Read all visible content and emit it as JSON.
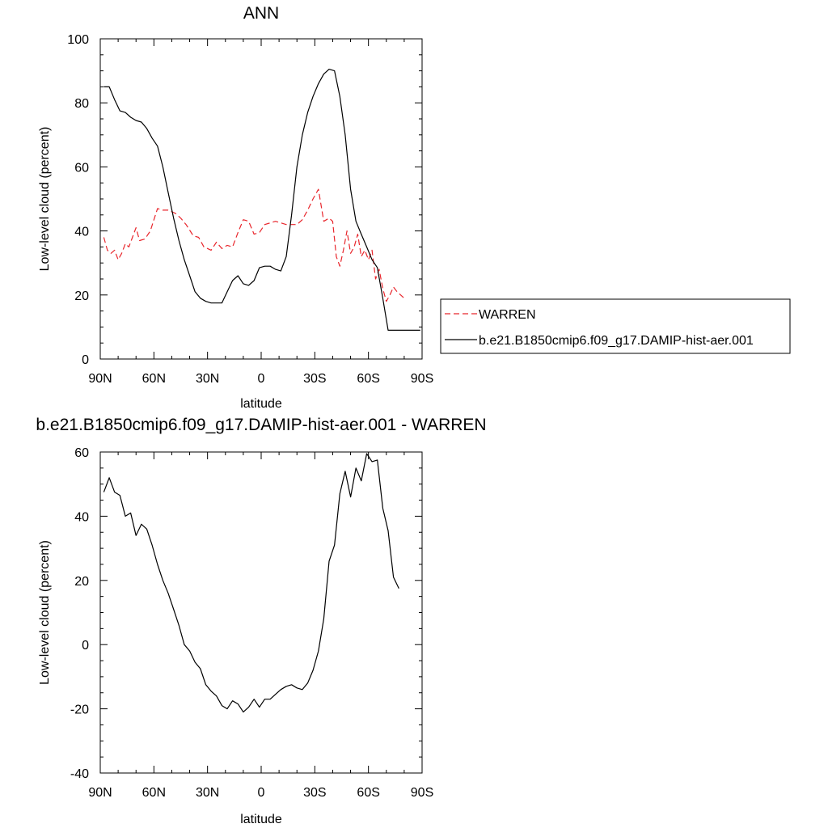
{
  "chart_data": [
    {
      "type": "line",
      "title": "ANN",
      "xlabel": "latitude",
      "ylabel": "Low-level cloud (percent)",
      "xlim": [
        90,
        -90
      ],
      "ylim": [
        0,
        100
      ],
      "xticks": [
        {
          "value": 90,
          "label": "90N"
        },
        {
          "value": 60,
          "label": "60N"
        },
        {
          "value": 30,
          "label": "30N"
        },
        {
          "value": 0,
          "label": "0"
        },
        {
          "value": -30,
          "label": "30S"
        },
        {
          "value": -60,
          "label": "60S"
        },
        {
          "value": -90,
          "label": "90S"
        }
      ],
      "yticks": [
        0,
        20,
        40,
        60,
        80,
        100
      ],
      "legend_position": "right",
      "series": [
        {
          "name": "WARREN",
          "color": "#e8262c",
          "dash": "dashed",
          "x": [
            88,
            86,
            84,
            82,
            80,
            78,
            76,
            74,
            72,
            70,
            68,
            65,
            62,
            58,
            55,
            52,
            48,
            45,
            42,
            38,
            35,
            32,
            28,
            25,
            22,
            19,
            16,
            13,
            10,
            7,
            4,
            1,
            -2,
            -5,
            -8,
            -11,
            -14,
            -17,
            -20,
            -23,
            -26,
            -29,
            -32,
            -35,
            -38,
            -40,
            -42,
            -44,
            -46,
            -48,
            -50,
            -52,
            -54,
            -56,
            -58,
            -60,
            -62,
            -64,
            -66,
            -68,
            -70,
            -72,
            -74,
            -76,
            -78,
            -80
          ],
          "values": [
            38,
            34,
            33,
            34,
            31,
            33,
            36,
            35,
            38,
            41,
            37,
            37.5,
            40,
            47,
            46.5,
            46.5,
            45.5,
            44,
            42,
            38.5,
            38,
            35,
            34,
            36.5,
            34.5,
            35.5,
            35,
            39.5,
            43.5,
            43,
            39,
            39.5,
            42,
            42.5,
            43,
            42.5,
            42,
            42,
            42,
            43.5,
            46.5,
            50,
            53,
            43,
            44,
            43,
            32,
            29,
            34,
            40,
            33,
            35,
            39,
            32,
            34,
            31,
            34,
            25,
            28,
            22,
            18,
            20,
            22.5,
            21,
            20,
            19
          ]
        },
        {
          "name": "b.e21.B1850cmip6.f09_g17.DAMIP-hist-aer.001",
          "color": "#000000",
          "dash": "solid",
          "x": [
            88,
            85,
            82,
            79,
            76,
            73,
            70,
            67,
            64,
            61,
            58,
            55,
            52,
            49,
            46,
            43,
            40,
            37,
            34,
            31,
            28,
            25,
            22,
            19,
            16,
            13,
            10,
            7,
            4,
            1,
            -2,
            -5,
            -8,
            -11,
            -14,
            -17,
            -20,
            -23,
            -26,
            -29,
            -32,
            -35,
            -38,
            -41,
            -44,
            -47,
            -50,
            -53,
            -56,
            -59,
            -62,
            -65,
            -68,
            -71,
            -74,
            -77,
            -80,
            -83,
            -86,
            -89
          ],
          "values": [
            85,
            85,
            81,
            77.5,
            77,
            75.5,
            74.5,
            74,
            72,
            69,
            66.5,
            60,
            52,
            44,
            37,
            31,
            26,
            21,
            19,
            18,
            17.5,
            17.5,
            17.5,
            21,
            24.5,
            26,
            23.5,
            23,
            24.5,
            28.5,
            29,
            29,
            28,
            27.5,
            32,
            45,
            60,
            70,
            77,
            82,
            86,
            89,
            90.5,
            90,
            82,
            70,
            53,
            43,
            39,
            35,
            31,
            28.5,
            19,
            9,
            9,
            9,
            9,
            9,
            9,
            9
          ]
        }
      ]
    },
    {
      "type": "line",
      "title": "b.e21.B1850cmip6.f09_g17.DAMIP-hist-aer.001 - WARREN",
      "xlabel": "latitude",
      "ylabel": "Low-level cloud (percent)",
      "xlim": [
        90,
        -90
      ],
      "ylim": [
        -40,
        60
      ],
      "xticks": [
        {
          "value": 90,
          "label": "90N"
        },
        {
          "value": 60,
          "label": "60N"
        },
        {
          "value": 30,
          "label": "30N"
        },
        {
          "value": 0,
          "label": "0"
        },
        {
          "value": -30,
          "label": "30S"
        },
        {
          "value": -60,
          "label": "60S"
        },
        {
          "value": -90,
          "label": "90S"
        }
      ],
      "yticks": [
        -40,
        -20,
        0,
        20,
        40,
        60
      ],
      "series": [
        {
          "color": "#000000",
          "dash": "solid",
          "x": [
            88,
            85,
            82,
            79,
            76,
            73,
            70,
            67,
            64,
            61,
            58,
            55,
            52,
            49,
            46,
            43,
            40,
            37,
            34,
            31,
            28,
            25,
            22,
            19,
            16,
            13,
            10,
            7,
            4,
            1,
            -2,
            -5,
            -8,
            -11,
            -14,
            -17,
            -20,
            -23,
            -26,
            -29,
            -32,
            -35,
            -38,
            -41,
            -44,
            -47,
            -50,
            -53,
            -56,
            -59,
            -62,
            -65,
            -68,
            -71,
            -74,
            -77
          ],
          "values": [
            47.5,
            52,
            47.5,
            46.5,
            40,
            41,
            34,
            37.5,
            36,
            31,
            25,
            20,
            16,
            11,
            6,
            0,
            -2,
            -5.5,
            -7.5,
            -12.5,
            -14.5,
            -16,
            -19,
            -20,
            -17.5,
            -18.5,
            -21,
            -19.5,
            -17,
            -19.5,
            -17,
            -17,
            -15.5,
            -14,
            -13,
            -12.5,
            -13.5,
            -14,
            -12,
            -8,
            -2,
            8,
            26,
            31,
            47,
            54,
            46,
            55,
            51,
            59.5,
            57,
            57.5,
            42.5,
            35.5,
            21,
            17.5
          ]
        }
      ]
    }
  ]
}
